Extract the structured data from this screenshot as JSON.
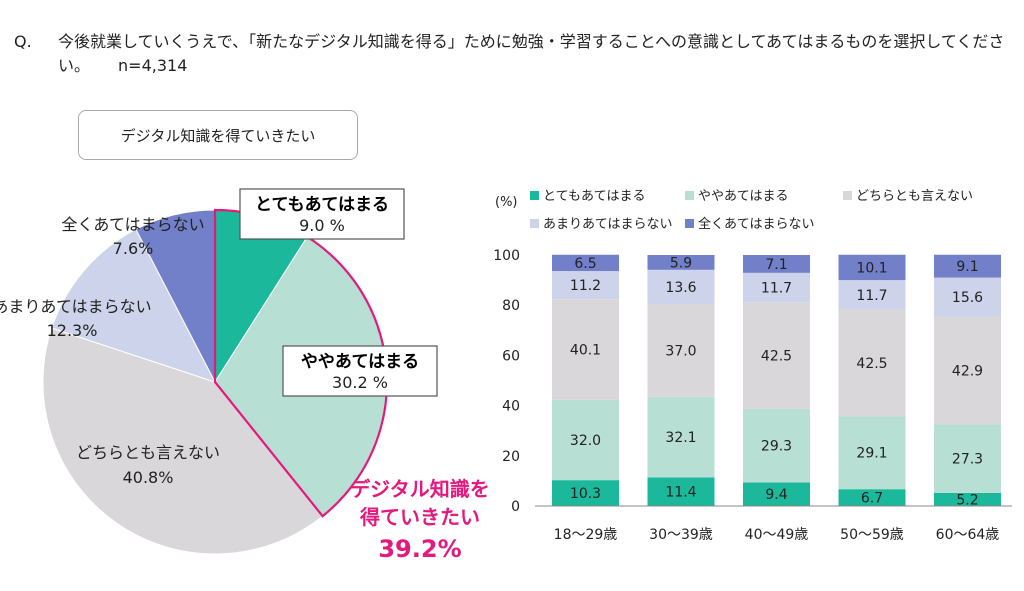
{
  "question": {
    "label": "Q.",
    "text": "今後就業していくうえで、「新たなデジタル知識を得る」ために勉強・学習することへの意識としてあてはまるものを選択してください。",
    "n": "n=4,314"
  },
  "subtitle": "デジタル知識を得ていきたい",
  "colors": {
    "very": "#1cb89b",
    "somewhat": "#b7dfd3",
    "neither": "#d9d7da",
    "not_much": "#cdd3ea",
    "not_at_all": "#7180c8",
    "highlight": "#e5197d"
  },
  "chart_data": [
    {
      "type": "pie",
      "labels": [
        "とてもあてはまる",
        "ややあてはまる",
        "どちらとも言えない",
        "あまりあてはまらない",
        "全くあてはまらない"
      ],
      "values": [
        9.0,
        30.2,
        40.8,
        12.3,
        7.6
      ],
      "value_labels": [
        "9.0 %",
        "30.2 %",
        "40.8%",
        "12.3%",
        "7.6%"
      ],
      "callout": {
        "line1": "デジタル知識を",
        "line2": "得ていきたい",
        "value": "39.2%"
      }
    },
    {
      "type": "bar",
      "stacked": true,
      "unit_label": "(%)",
      "categories": [
        "18～29歳",
        "30～39歳",
        "40～49歳",
        "50～59歳",
        "60～64歳"
      ],
      "ylim": [
        0,
        100
      ],
      "yticks": [
        "0",
        "20",
        "40",
        "60",
        "80",
        "100"
      ],
      "legend_placement": "top",
      "series": [
        {
          "name": "とてもあてはまる",
          "values": [
            "10.3",
            "11.4",
            "9.4",
            "6.7",
            "5.2"
          ]
        },
        {
          "name": "ややあてはまる",
          "values": [
            "32.0",
            "32.1",
            "29.3",
            "29.1",
            "27.3"
          ]
        },
        {
          "name": "どちらとも言えない",
          "values": [
            "40.1",
            "37.0",
            "42.5",
            "42.5",
            "42.9"
          ]
        },
        {
          "name": "あまりあてはまらない",
          "values": [
            "11.2",
            "13.6",
            "11.7",
            "11.7",
            "15.6"
          ]
        },
        {
          "name": "全くあてはまらない",
          "values": [
            "6.5",
            "5.9",
            "7.1",
            "10.1",
            "9.1"
          ]
        }
      ]
    }
  ]
}
